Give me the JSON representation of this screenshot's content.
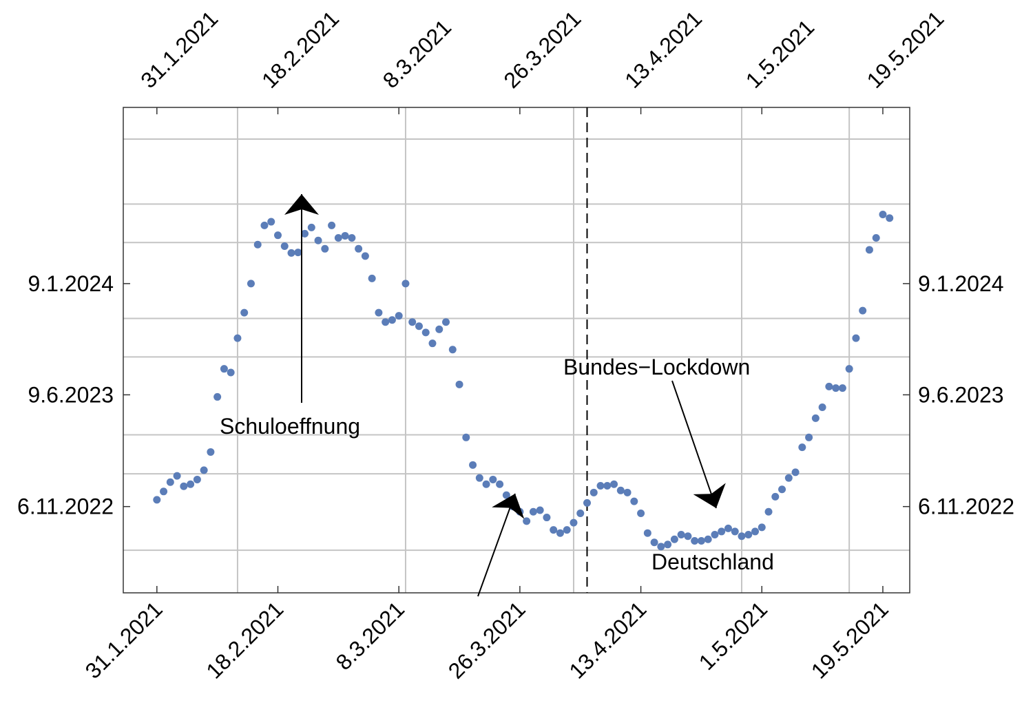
{
  "chart_data": {
    "type": "scatter",
    "title": "",
    "xlabel": "",
    "ylabel": "",
    "x_axis": {
      "ticks": [
        "31.1.2021",
        "18.2.2021",
        "8.3.2021",
        "26.3.2021",
        "13.4.2021",
        "1.5.2021",
        "19.5.2021"
      ],
      "range": [
        "2021-01-26",
        "2021-05-23"
      ],
      "grid_dates": [
        "2021-02-12",
        "2021-03-09",
        "2021-04-03",
        "2021-04-28",
        "2021-05-14"
      ]
    },
    "y_axis": {
      "ticks": [
        {
          "label": "6.11.2022",
          "date": "2022-11-06"
        },
        {
          "label": "9.6.2023",
          "date": "2023-06-09"
        },
        {
          "label": "9.1.2024",
          "date": "2024-01-09"
        }
      ],
      "range": [
        "2022-05-24",
        "2024-12-13"
      ],
      "grid_dates": [
        "2022-08-14",
        "2023-01-08",
        "2023-03-24",
        "2023-08-21",
        "2023-11-03",
        "2024-03-28",
        "2024-06-10",
        "2024-10-13"
      ]
    },
    "color": "#5b7db8",
    "grid": true,
    "vertical_marker_date": "2021-04-05",
    "annotations": [
      {
        "text": "Schuloeffnung",
        "arrow": true
      },
      {
        "text": "Bundes−Lockdown",
        "arrow": true
      },
      {
        "text": "Deutschland",
        "arrow": false
      }
    ],
    "series": [
      {
        "name": "",
        "points": [
          [
            "2021-01-31",
            "2022-11-19"
          ],
          [
            "2021-02-01",
            "2022-12-05"
          ],
          [
            "2021-02-02",
            "2022-12-23"
          ],
          [
            "2021-02-03",
            "2023-01-04"
          ],
          [
            "2021-02-04",
            "2022-12-15"
          ],
          [
            "2021-02-05",
            "2022-12-19"
          ],
          [
            "2021-02-06",
            "2022-12-28"
          ],
          [
            "2021-02-07",
            "2023-01-15"
          ],
          [
            "2021-02-08",
            "2023-02-19"
          ],
          [
            "2021-02-09",
            "2023-06-05"
          ],
          [
            "2021-02-10",
            "2023-07-29"
          ],
          [
            "2021-02-11",
            "2023-07-22"
          ],
          [
            "2021-02-12",
            "2023-09-26"
          ],
          [
            "2021-02-13",
            "2023-11-14"
          ],
          [
            "2021-02-14",
            "2024-01-09"
          ],
          [
            "2021-02-15",
            "2024-03-24"
          ],
          [
            "2021-02-16",
            "2024-04-30"
          ],
          [
            "2021-02-17",
            "2024-05-07"
          ],
          [
            "2021-02-18",
            "2024-04-11"
          ],
          [
            "2021-02-19",
            "2024-03-21"
          ],
          [
            "2021-02-20",
            "2024-03-08"
          ],
          [
            "2021-02-21",
            "2024-03-09"
          ],
          [
            "2021-02-22",
            "2024-04-14"
          ],
          [
            "2021-02-23",
            "2024-04-26"
          ],
          [
            "2021-02-24",
            "2024-04-01"
          ],
          [
            "2021-02-25",
            "2024-03-16"
          ],
          [
            "2021-02-26",
            "2024-04-30"
          ],
          [
            "2021-02-27",
            "2024-04-06"
          ],
          [
            "2021-02-28",
            "2024-04-10"
          ],
          [
            "2021-03-01",
            "2024-04-06"
          ],
          [
            "2021-03-02",
            "2024-03-16"
          ],
          [
            "2021-03-03",
            "2024-03-02"
          ],
          [
            "2021-03-04",
            "2024-01-19"
          ],
          [
            "2021-03-05",
            "2023-11-14"
          ],
          [
            "2021-03-06",
            "2023-10-27"
          ],
          [
            "2021-03-07",
            "2023-10-31"
          ],
          [
            "2021-03-08",
            "2023-11-08"
          ],
          [
            "2021-03-09",
            "2024-01-09"
          ],
          [
            "2021-03-10",
            "2023-10-27"
          ],
          [
            "2021-03-11",
            "2023-10-19"
          ],
          [
            "2021-03-12",
            "2023-10-07"
          ],
          [
            "2021-03-13",
            "2023-09-16"
          ],
          [
            "2021-03-14",
            "2023-10-13"
          ],
          [
            "2021-03-15",
            "2023-10-27"
          ],
          [
            "2021-03-16",
            "2023-09-04"
          ],
          [
            "2021-03-17",
            "2023-06-29"
          ],
          [
            "2021-03-18",
            "2023-03-19"
          ],
          [
            "2021-03-19",
            "2023-01-25"
          ],
          [
            "2021-03-20",
            "2022-12-31"
          ],
          [
            "2021-03-21",
            "2022-12-19"
          ],
          [
            "2021-03-22",
            "2022-12-28"
          ],
          [
            "2021-03-23",
            "2022-12-19"
          ],
          [
            "2021-03-24",
            "2022-11-28"
          ],
          [
            "2021-03-25",
            "2022-11-06"
          ],
          [
            "2021-03-26",
            "2022-10-27"
          ],
          [
            "2021-03-27",
            "2022-10-09"
          ],
          [
            "2021-03-28",
            "2022-10-27"
          ],
          [
            "2021-03-29",
            "2022-10-30"
          ],
          [
            "2021-03-30",
            "2022-10-16"
          ],
          [
            "2021-03-31",
            "2022-09-22"
          ],
          [
            "2021-04-01",
            "2022-09-16"
          ],
          [
            "2021-04-02",
            "2022-09-22"
          ],
          [
            "2021-04-03",
            "2022-10-06"
          ],
          [
            "2021-04-04",
            "2022-10-24"
          ],
          [
            "2021-04-05",
            "2022-11-13"
          ],
          [
            "2021-04-06",
            "2022-12-03"
          ],
          [
            "2021-04-07",
            "2022-12-16"
          ],
          [
            "2021-04-08",
            "2022-12-16"
          ],
          [
            "2021-04-09",
            "2022-12-19"
          ],
          [
            "2021-04-10",
            "2022-12-07"
          ],
          [
            "2021-04-11",
            "2022-12-03"
          ],
          [
            "2021-04-12",
            "2022-11-16"
          ],
          [
            "2021-04-13",
            "2022-10-24"
          ],
          [
            "2021-04-14",
            "2022-09-16"
          ],
          [
            "2021-04-15",
            "2022-08-29"
          ],
          [
            "2021-04-16",
            "2022-08-21"
          ],
          [
            "2021-04-17",
            "2022-08-25"
          ],
          [
            "2021-04-18",
            "2022-09-04"
          ],
          [
            "2021-04-19",
            "2022-09-13"
          ],
          [
            "2021-04-20",
            "2022-09-10"
          ],
          [
            "2021-04-21",
            "2022-09-01"
          ],
          [
            "2021-04-22",
            "2022-09-01"
          ],
          [
            "2021-04-23",
            "2022-09-04"
          ],
          [
            "2021-04-24",
            "2022-09-13"
          ],
          [
            "2021-04-25",
            "2022-09-19"
          ],
          [
            "2021-04-26",
            "2022-09-25"
          ],
          [
            "2021-04-27",
            "2022-09-19"
          ],
          [
            "2021-04-28",
            "2022-09-10"
          ],
          [
            "2021-04-29",
            "2022-09-13"
          ],
          [
            "2021-04-30",
            "2022-09-19"
          ],
          [
            "2021-05-01",
            "2022-09-27"
          ],
          [
            "2021-05-02",
            "2022-10-27"
          ],
          [
            "2021-05-03",
            "2022-11-25"
          ],
          [
            "2021-05-04",
            "2022-12-09"
          ],
          [
            "2021-05-05",
            "2022-12-31"
          ],
          [
            "2021-05-06",
            "2023-01-11"
          ],
          [
            "2021-05-07",
            "2023-02-28"
          ],
          [
            "2021-05-08",
            "2023-03-19"
          ],
          [
            "2021-05-09",
            "2023-04-25"
          ],
          [
            "2021-05-10",
            "2023-05-16"
          ],
          [
            "2021-05-11",
            "2023-06-25"
          ],
          [
            "2021-05-12",
            "2023-06-22"
          ],
          [
            "2021-05-13",
            "2023-06-22"
          ],
          [
            "2021-05-14",
            "2023-07-29"
          ],
          [
            "2021-05-15",
            "2023-09-26"
          ],
          [
            "2021-05-16",
            "2023-11-18"
          ],
          [
            "2021-05-17",
            "2024-03-14"
          ],
          [
            "2021-05-18",
            "2024-04-06"
          ],
          [
            "2021-05-19",
            "2024-05-21"
          ],
          [
            "2021-05-20",
            "2024-05-14"
          ]
        ]
      }
    ]
  }
}
